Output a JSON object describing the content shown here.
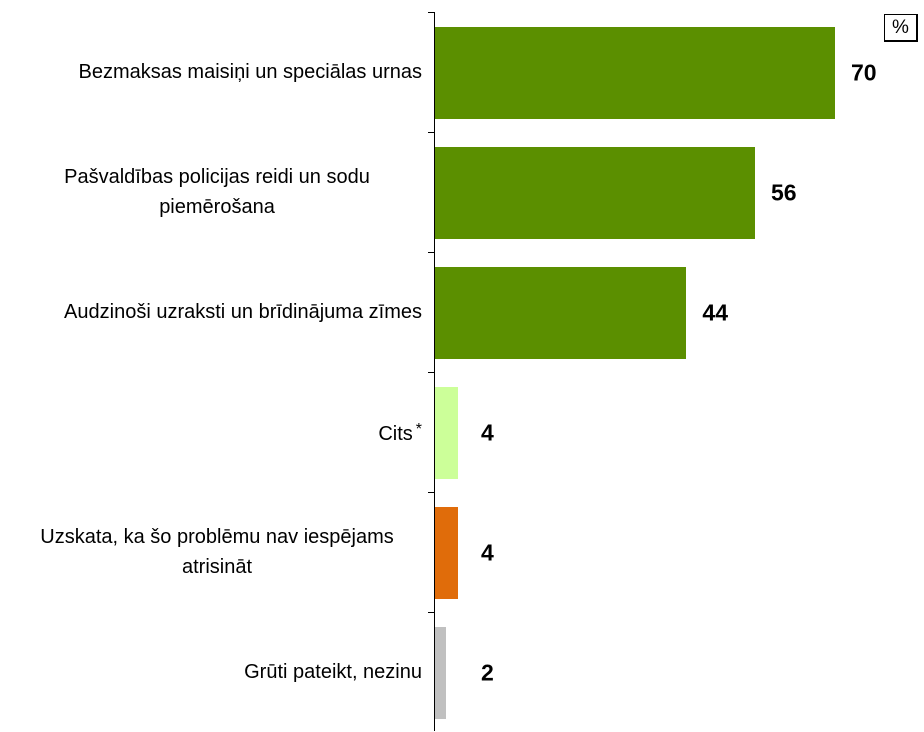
{
  "chart_data": {
    "type": "bar",
    "orientation": "horizontal",
    "unit": "%",
    "categories": [
      "Bezmaksas maisiņi un speciālas urnas",
      "Pašvaldības policijas reidi un sodu piemērošana",
      "Audzinoši uzraksti un brīdinājuma zīmes",
      "Cits",
      "Uzskata, ka šo problēmu nav iespējams atrisināt",
      "Grūti pateikt, nezinu"
    ],
    "values": [
      70,
      56,
      44,
      4,
      4,
      2
    ],
    "colors": [
      "#5b8f00",
      "#5b8f00",
      "#5b8f00",
      "#ccff99",
      "#e06c0a",
      "#c0c0c0"
    ],
    "annotations": [
      {
        "category": 3,
        "text": "*"
      }
    ]
  }
}
